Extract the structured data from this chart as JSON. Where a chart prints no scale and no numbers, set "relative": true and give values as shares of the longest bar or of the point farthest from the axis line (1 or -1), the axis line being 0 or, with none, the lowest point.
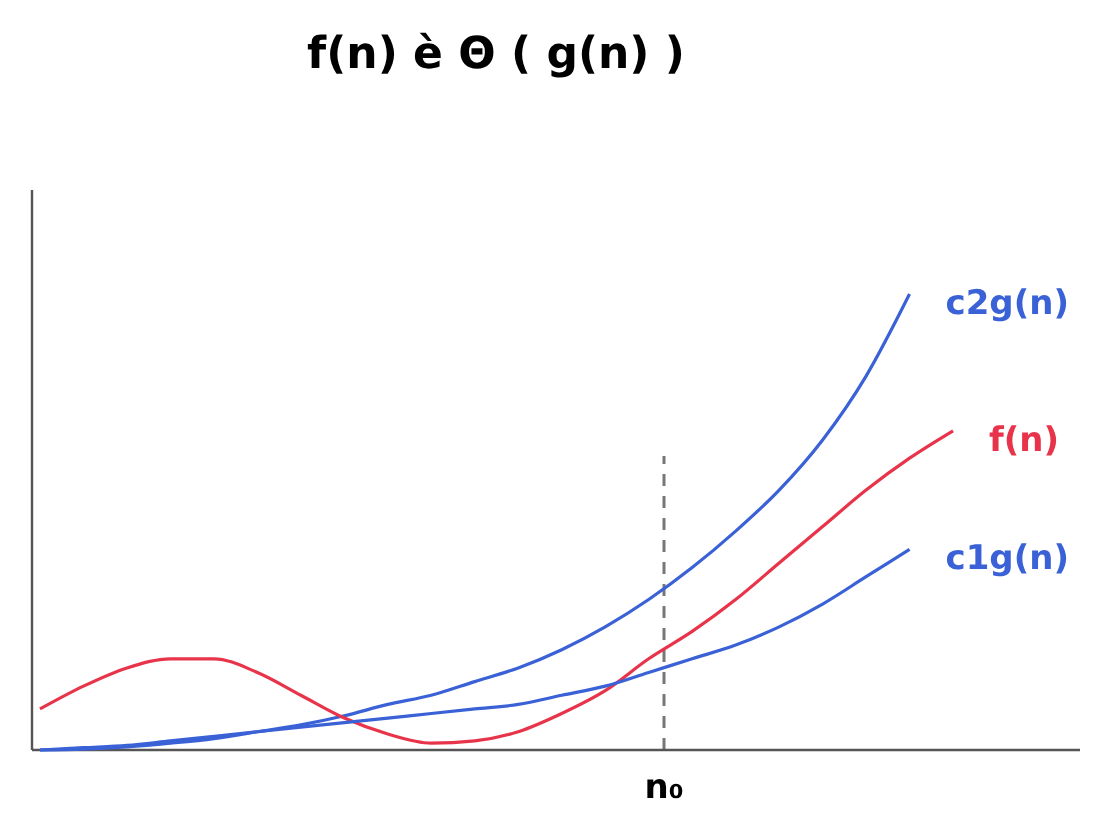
{
  "chart_data": {
    "type": "line",
    "title": "f(n) è Θ ( g(n) )",
    "relative": true,
    "categories": [
      null,
      null,
      null,
      null,
      null,
      null,
      null,
      null,
      null,
      null,
      null,
      null,
      null,
      null,
      null,
      null,
      null,
      null,
      null,
      null,
      null,
      null,
      null,
      null
    ],
    "annotations": [
      "n₀"
    ],
    "series": [
      {
        "name": "c2g(n)",
        "color": "#3a62d6",
        "values": [
          0,
          0.002,
          0.007,
          0.015,
          0.025,
          0.04,
          0.055,
          0.075,
          0.1,
          0.12,
          0.15,
          0.18,
          0.22,
          0.27,
          0.33,
          0.4,
          0.48,
          0.57,
          0.68,
          0.82,
          1,
          null,
          null,
          null
        ]
      },
      {
        "name": "f(n)",
        "color": "#e8344a",
        "values": [
          0.09,
          0.14,
          0.18,
          0.2,
          0.2,
          0.17,
          0.12,
          0.07,
          0.035,
          0.015,
          0.02,
          0.04,
          0.08,
          0.13,
          0.2,
          0.26,
          0.33,
          0.41,
          0.49,
          0.57,
          0.64,
          0.7,
          null,
          null
        ]
      },
      {
        "name": "c1g(n)",
        "color": "#3a62d6",
        "values": [
          0,
          0.005,
          0.01,
          0.02,
          0.03,
          0.04,
          0.05,
          0.06,
          0.07,
          0.08,
          0.09,
          0.1,
          0.12,
          0.14,
          0.17,
          0.2,
          0.23,
          0.27,
          0.32,
          0.38,
          0.44,
          null,
          null,
          null
        ]
      }
    ],
    "legend": false,
    "grid": false,
    "marker": "none",
    "line_style": "solid"
  }
}
